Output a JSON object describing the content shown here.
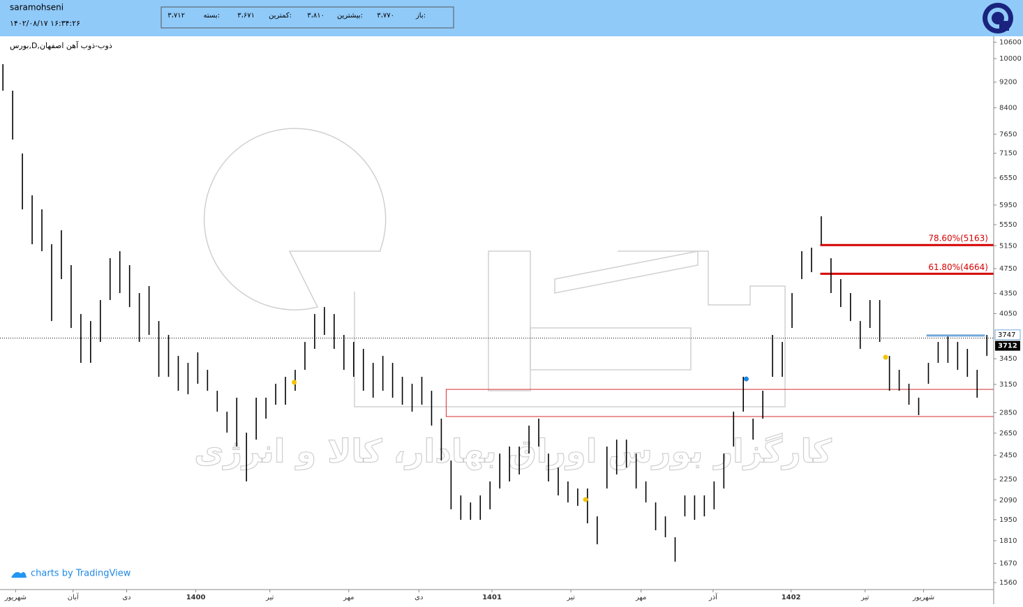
{
  "header": {
    "user": "saramohseni",
    "datetime": "۱۴۰۲/۰۸/۱۷ ۱۶:۳۴:۲۶",
    "quote": [
      {
        "label": "باز:",
        "value": "۳،۷۷۰"
      },
      {
        "label": "بیشترین:",
        "value": "۳،۸۱۰"
      },
      {
        "label": "کمترین:",
        "value": "۳،۶۷۱"
      },
      {
        "label": "بسته:",
        "value": "۳،۷۱۲"
      }
    ]
  },
  "branding": "charts by TradingView",
  "chart_data": {
    "type": "hilo",
    "title": "بورس,D,ذوب-ذوب آهن اصفهان",
    "watermark": "کارگزار بورس اوراق بهادار، کالا و انرژی",
    "log_scale": true,
    "color": "#000000",
    "xlim": [
      -0.3,
      101.7
    ],
    "ylim": [
      1522,
      10824
    ],
    "yticks": [
      1560,
      1670,
      1810,
      1950,
      2090,
      2250,
      2450,
      2650,
      2850,
      3150,
      3450,
      4050,
      4350,
      4750,
      5150,
      5550,
      5950,
      6550,
      7150,
      7650,
      8400,
      9200,
      10000,
      10600
    ],
    "xticks": [
      {
        "value": 1.3,
        "label": "شهریور"
      },
      {
        "value": 7.2,
        "label": "آبان"
      },
      {
        "value": 12.7,
        "label": "دی"
      },
      {
        "value": 19.8,
        "label": "1400"
      },
      {
        "value": 27.4,
        "label": "تیر"
      },
      {
        "value": 35.5,
        "label": "مهر"
      },
      {
        "value": 42.7,
        "label": "دی"
      },
      {
        "value": 50.2,
        "label": "1401"
      },
      {
        "value": 58.3,
        "label": "تیر"
      },
      {
        "value": 65.5,
        "label": "مهر"
      },
      {
        "value": 72.9,
        "label": "آذر"
      },
      {
        "value": 80.9,
        "label": "1402"
      },
      {
        "value": 88.5,
        "label": "تیر"
      },
      {
        "value": 94.5,
        "label": "شهریور"
      }
    ],
    "high": [
      9804,
      8925,
      7143,
      6158,
      5860,
      5178,
      5441,
      4808,
      4043,
      3944,
      4248,
      4928,
      5052,
      4808,
      4355,
      4464,
      3944,
      3754,
      3485,
      3400,
      3529,
      3317,
      3080,
      2860,
      3005,
      2655,
      3005,
      3005,
      3157,
      3236,
      3317,
      3662,
      4043,
      4144,
      4043,
      3754,
      3662,
      3573,
      3400,
      3485,
      3400,
      3236,
      3157,
      3236,
      3080,
      2790,
      2405,
      2125,
      2073,
      2125,
      2233,
      2465,
      2527,
      2527,
      2722,
      2790,
      2465,
      2346,
      2233,
      2178,
      2178,
      1973,
      2527,
      2590,
      2590,
      2465,
      2233,
      2073,
      1973,
      1832,
      2125,
      2125,
      2125,
      2233,
      2465,
      2860,
      3236,
      2790,
      3080,
      3754,
      3662,
      4355,
      5052,
      5115,
      5717,
      4928,
      4576,
      4355,
      3944,
      4248,
      4248,
      3485,
      3317,
      3157,
      3005,
      3400,
      3662,
      3754,
      3662,
      3573,
      3317,
      3754
    ],
    "low": [
      8925,
      7505,
      5860,
      5178,
      5052,
      3944,
      4576,
      3848,
      3400,
      3400,
      3662,
      4248,
      4355,
      4144,
      3662,
      3754,
      3236,
      3236,
      3080,
      3042,
      3157,
      3080,
      2860,
      2655,
      2527,
      2233,
      2590,
      2790,
      2931,
      2931,
      3080,
      3317,
      3573,
      3754,
      3573,
      3317,
      3236,
      3080,
      3005,
      3080,
      3005,
      2931,
      2860,
      2931,
      2722,
      2405,
      2023,
      1949,
      1949,
      1949,
      2023,
      2178,
      2233,
      2289,
      2465,
      2527,
      2233,
      2125,
      2073,
      2048,
      1925,
      1787,
      2178,
      2289,
      2346,
      2178,
      2073,
      1878,
      1832,
      1680,
      1973,
      1949,
      1973,
      2023,
      2178,
      2527,
      2860,
      2590,
      2790,
      3236,
      3236,
      3848,
      4576,
      4690,
      5178,
      4355,
      4144,
      3944,
      3573,
      3848,
      3662,
      3080,
      3080,
      2931,
      2825,
      3157,
      3400,
      3400,
      3317,
      3236,
      3005,
      3485
    ],
    "markers": [
      {
        "x": 29.9,
        "value": 3173,
        "color": "#f5c400"
      },
      {
        "x": 59.8,
        "value": 2094,
        "color": "#f5c400"
      },
      {
        "x": 76.3,
        "value": 3212,
        "color": "#1e88e5"
      },
      {
        "x": 90.6,
        "value": 3469,
        "color": "#f5c400"
      }
    ],
    "zone": {
      "x_start": 45.5,
      "low": 2811,
      "high": 3095,
      "color": "#d32f2f"
    },
    "fib_levels": [
      {
        "value": 5163,
        "label": "78.60%(5163)"
      },
      {
        "value": 4664,
        "label": "61.80%(4664)"
      }
    ],
    "fib_start": 83.9,
    "fib_color": "#d50000",
    "level_line": {
      "value": 3747,
      "x_start": 94.8,
      "x_end": 100.8,
      "color": "#6fa8dc"
    },
    "last_price": 3712
  }
}
